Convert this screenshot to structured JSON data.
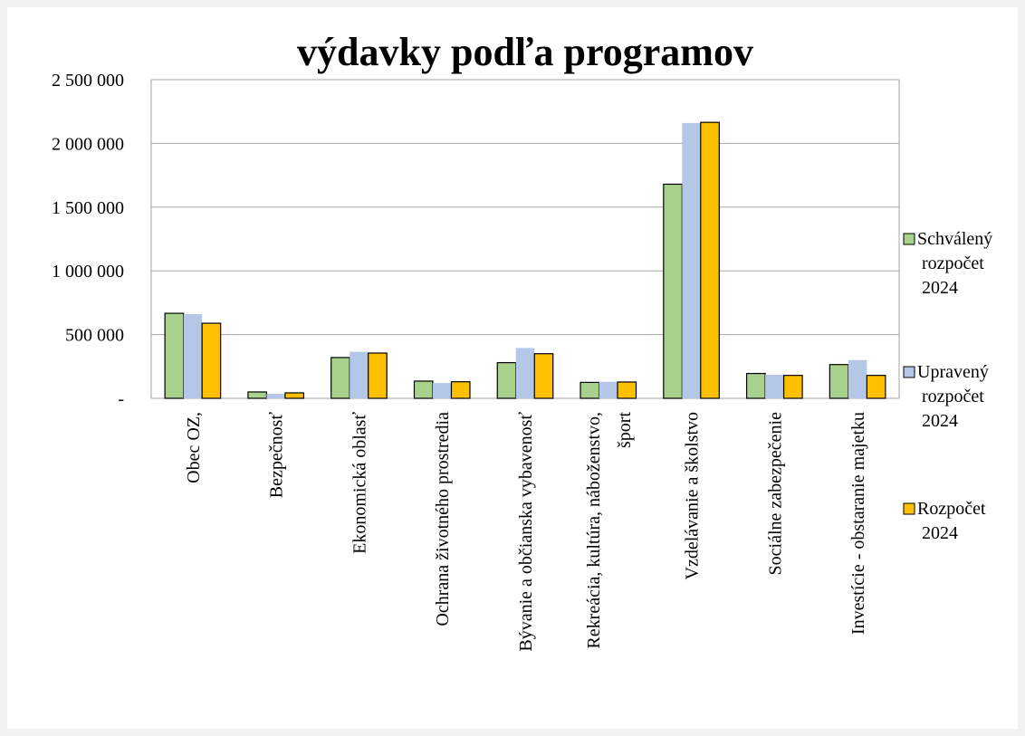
{
  "chart_data": {
    "type": "bar",
    "title": "výdavky podľa programov",
    "categories": [
      "Obec OZ,",
      "Bezpečnosť",
      "Ekonomická oblasť",
      "Ochrana životného prostredia",
      "Bývanie a občianska vybavenosť",
      "Rekreácia, kultúra, náboženstvo, šport",
      "Vzdelávanie a školstvo",
      "Sociálne zabezpečenie",
      "Investície - obstaranie majetku"
    ],
    "series": [
      {
        "name": "Schválený rozpočet 2024",
        "color": "#a9d18e",
        "values": [
          667000,
          50000,
          320000,
          135000,
          280000,
          125000,
          1680000,
          195000,
          265000
        ]
      },
      {
        "name": "Upravený rozpočet 2024",
        "color": "#b4c7e7",
        "values": [
          660000,
          35000,
          365000,
          120000,
          395000,
          130000,
          2160000,
          185000,
          300000
        ]
      },
      {
        "name": "Rozpočet 2024",
        "color": "#ffc000",
        "values": [
          589000,
          43000,
          355000,
          130000,
          350000,
          128000,
          2165000,
          180000,
          180000
        ]
      }
    ],
    "ylim": [
      0,
      2500000
    ],
    "yticks": [
      {
        "value": 0,
        "label": "-"
      },
      {
        "value": 500000,
        "label": "500 000"
      },
      {
        "value": 1000000,
        "label": "1 000 000"
      },
      {
        "value": 1500000,
        "label": "1 500 000"
      },
      {
        "value": 2000000,
        "label": "2 000 000"
      },
      {
        "value": 2500000,
        "label": "2 500 000"
      }
    ],
    "grid": true,
    "legend": "right"
  }
}
